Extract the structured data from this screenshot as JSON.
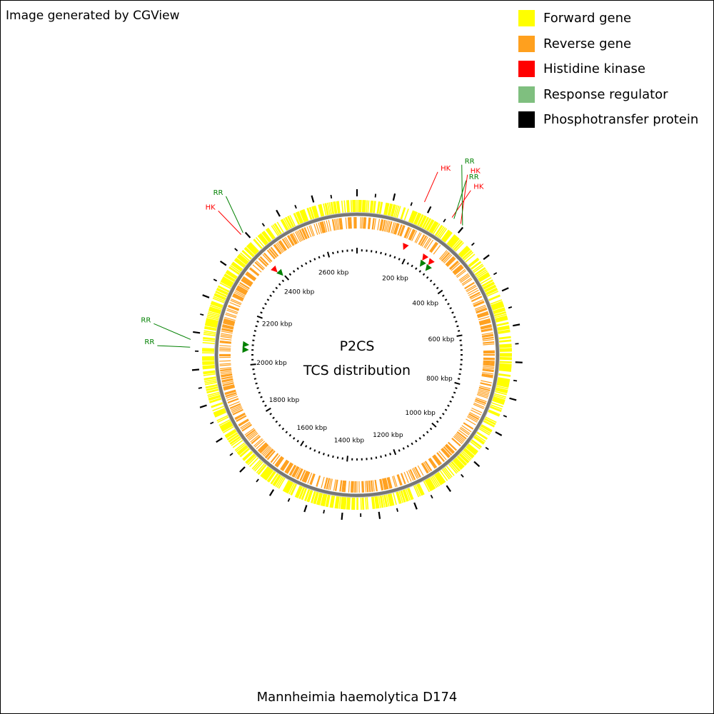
{
  "credit": "Image generated by CGView",
  "footer": "Mannheimia haemolytica D174",
  "center": {
    "line1": "P2CS",
    "line2": "TCS distribution"
  },
  "legend": [
    {
      "label": "Forward gene",
      "color": "#ffff00"
    },
    {
      "label": "Reverse gene",
      "color": "#ffa01e"
    },
    {
      "label": "Histidine kinase",
      "color": "#ff0000"
    },
    {
      "label": "Response regulator",
      "color": "#7fbf7f"
    },
    {
      "label": "Phosphotransfer protein",
      "color": "#000000"
    }
  ],
  "genome": {
    "length_kbp": 2720,
    "tick_labels": [
      "200 kbp",
      "400 kbp",
      "600 kbp",
      "800 kbp",
      "1000 kbp",
      "1200 kbp",
      "1400 kbp",
      "1600 kbp",
      "1800 kbp",
      "2000 kbp",
      "2200 kbp",
      "2400 kbp",
      "2600 kbp"
    ],
    "tick_values_kbp": [
      200,
      400,
      600,
      800,
      1000,
      1200,
      1400,
      1600,
      1800,
      2000,
      2200,
      2400,
      2600
    ]
  },
  "features": [
    {
      "label": "HK",
      "type": "Histidine kinase",
      "position_kbp": 180,
      "color": "#ff0000"
    },
    {
      "label": "HK",
      "type": "Histidine kinase",
      "position_kbp": 262,
      "color": "#ff0000"
    },
    {
      "label": "RR",
      "type": "Response regulator",
      "position_kbp": 268,
      "color": "#008000"
    },
    {
      "label": "HK",
      "type": "Histidine kinase",
      "position_kbp": 290,
      "color": "#ff0000"
    },
    {
      "label": "RR",
      "type": "Response regulator",
      "position_kbp": 296,
      "color": "#008000"
    },
    {
      "label": "RR",
      "type": "Response regulator",
      "position_kbp": 2060,
      "color": "#008000"
    },
    {
      "label": "RR",
      "type": "Response regulator",
      "position_kbp": 2080,
      "color": "#008000"
    },
    {
      "label": "HK",
      "type": "Histidine kinase",
      "position_kbp": 2388,
      "color": "#ff0000"
    },
    {
      "label": "RR",
      "type": "Response regulator",
      "position_kbp": 2395,
      "color": "#008000"
    }
  ]
}
